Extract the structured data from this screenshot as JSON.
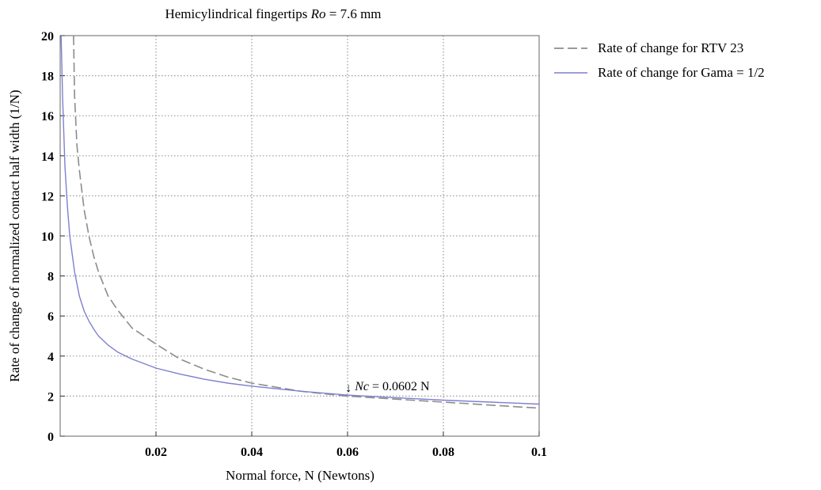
{
  "chart_data": {
    "type": "line",
    "title": {
      "prefix": "Hemicylindrical fingertips ",
      "var": "Ro",
      "suffix": " = 7.6 mm"
    },
    "xlabel": "Normal force, N (Newtons)",
    "ylabel": "Rate of change of normalized contact half width (1/N)",
    "xlim": [
      0,
      0.1
    ],
    "ylim": [
      0,
      20
    ],
    "xticks": [
      0.02,
      0.04,
      0.06,
      0.08,
      0.1
    ],
    "xtick_labels": [
      "0.02",
      "0.04",
      "0.06",
      "0.08",
      "0.1"
    ],
    "yticks": [
      0,
      2,
      4,
      6,
      8,
      10,
      12,
      14,
      16,
      18,
      20
    ],
    "ytick_labels": [
      "0",
      "2",
      "4",
      "6",
      "8",
      "10",
      "12",
      "14",
      "16",
      "18",
      "20"
    ],
    "grid": true,
    "legend_position": "outside-right-top",
    "series": [
      {
        "name": "Rate of change for RTV 23",
        "style": "dashed",
        "color": "#8c8c8c",
        "x": [
          0.0028,
          0.003,
          0.0035,
          0.004,
          0.005,
          0.006,
          0.007,
          0.008,
          0.01,
          0.012,
          0.015,
          0.02,
          0.025,
          0.03,
          0.035,
          0.04,
          0.045,
          0.05,
          0.055,
          0.06,
          0.07,
          0.08,
          0.09,
          0.1
        ],
        "y": [
          20,
          17,
          14.5,
          13.3,
          11.3,
          10,
          9,
          8.2,
          7,
          6.3,
          5.4,
          4.6,
          3.85,
          3.35,
          2.95,
          2.65,
          2.45,
          2.25,
          2.12,
          2.0,
          1.85,
          1.7,
          1.55,
          1.4
        ]
      },
      {
        "name": "Rate of change for Gama = 1/2",
        "style": "solid",
        "color": "#7f7fd0",
        "x": [
          0.0002,
          0.0005,
          0.001,
          0.0015,
          0.002,
          0.003,
          0.004,
          0.005,
          0.006,
          0.007,
          0.008,
          0.01,
          0.012,
          0.015,
          0.02,
          0.025,
          0.03,
          0.035,
          0.04,
          0.05,
          0.06,
          0.07,
          0.08,
          0.09,
          0.1
        ],
        "y": [
          20,
          17,
          13.5,
          11.5,
          10,
          8.2,
          7,
          6.25,
          5.75,
          5.35,
          5.0,
          4.55,
          4.2,
          3.85,
          3.4,
          3.1,
          2.85,
          2.65,
          2.5,
          2.25,
          2.05,
          1.92,
          1.8,
          1.7,
          1.6
        ]
      }
    ],
    "annotation": {
      "arrow": "↓",
      "var": "Nc",
      "text": " = 0.0602 N",
      "x": 0.0602,
      "y": 2.05
    }
  }
}
